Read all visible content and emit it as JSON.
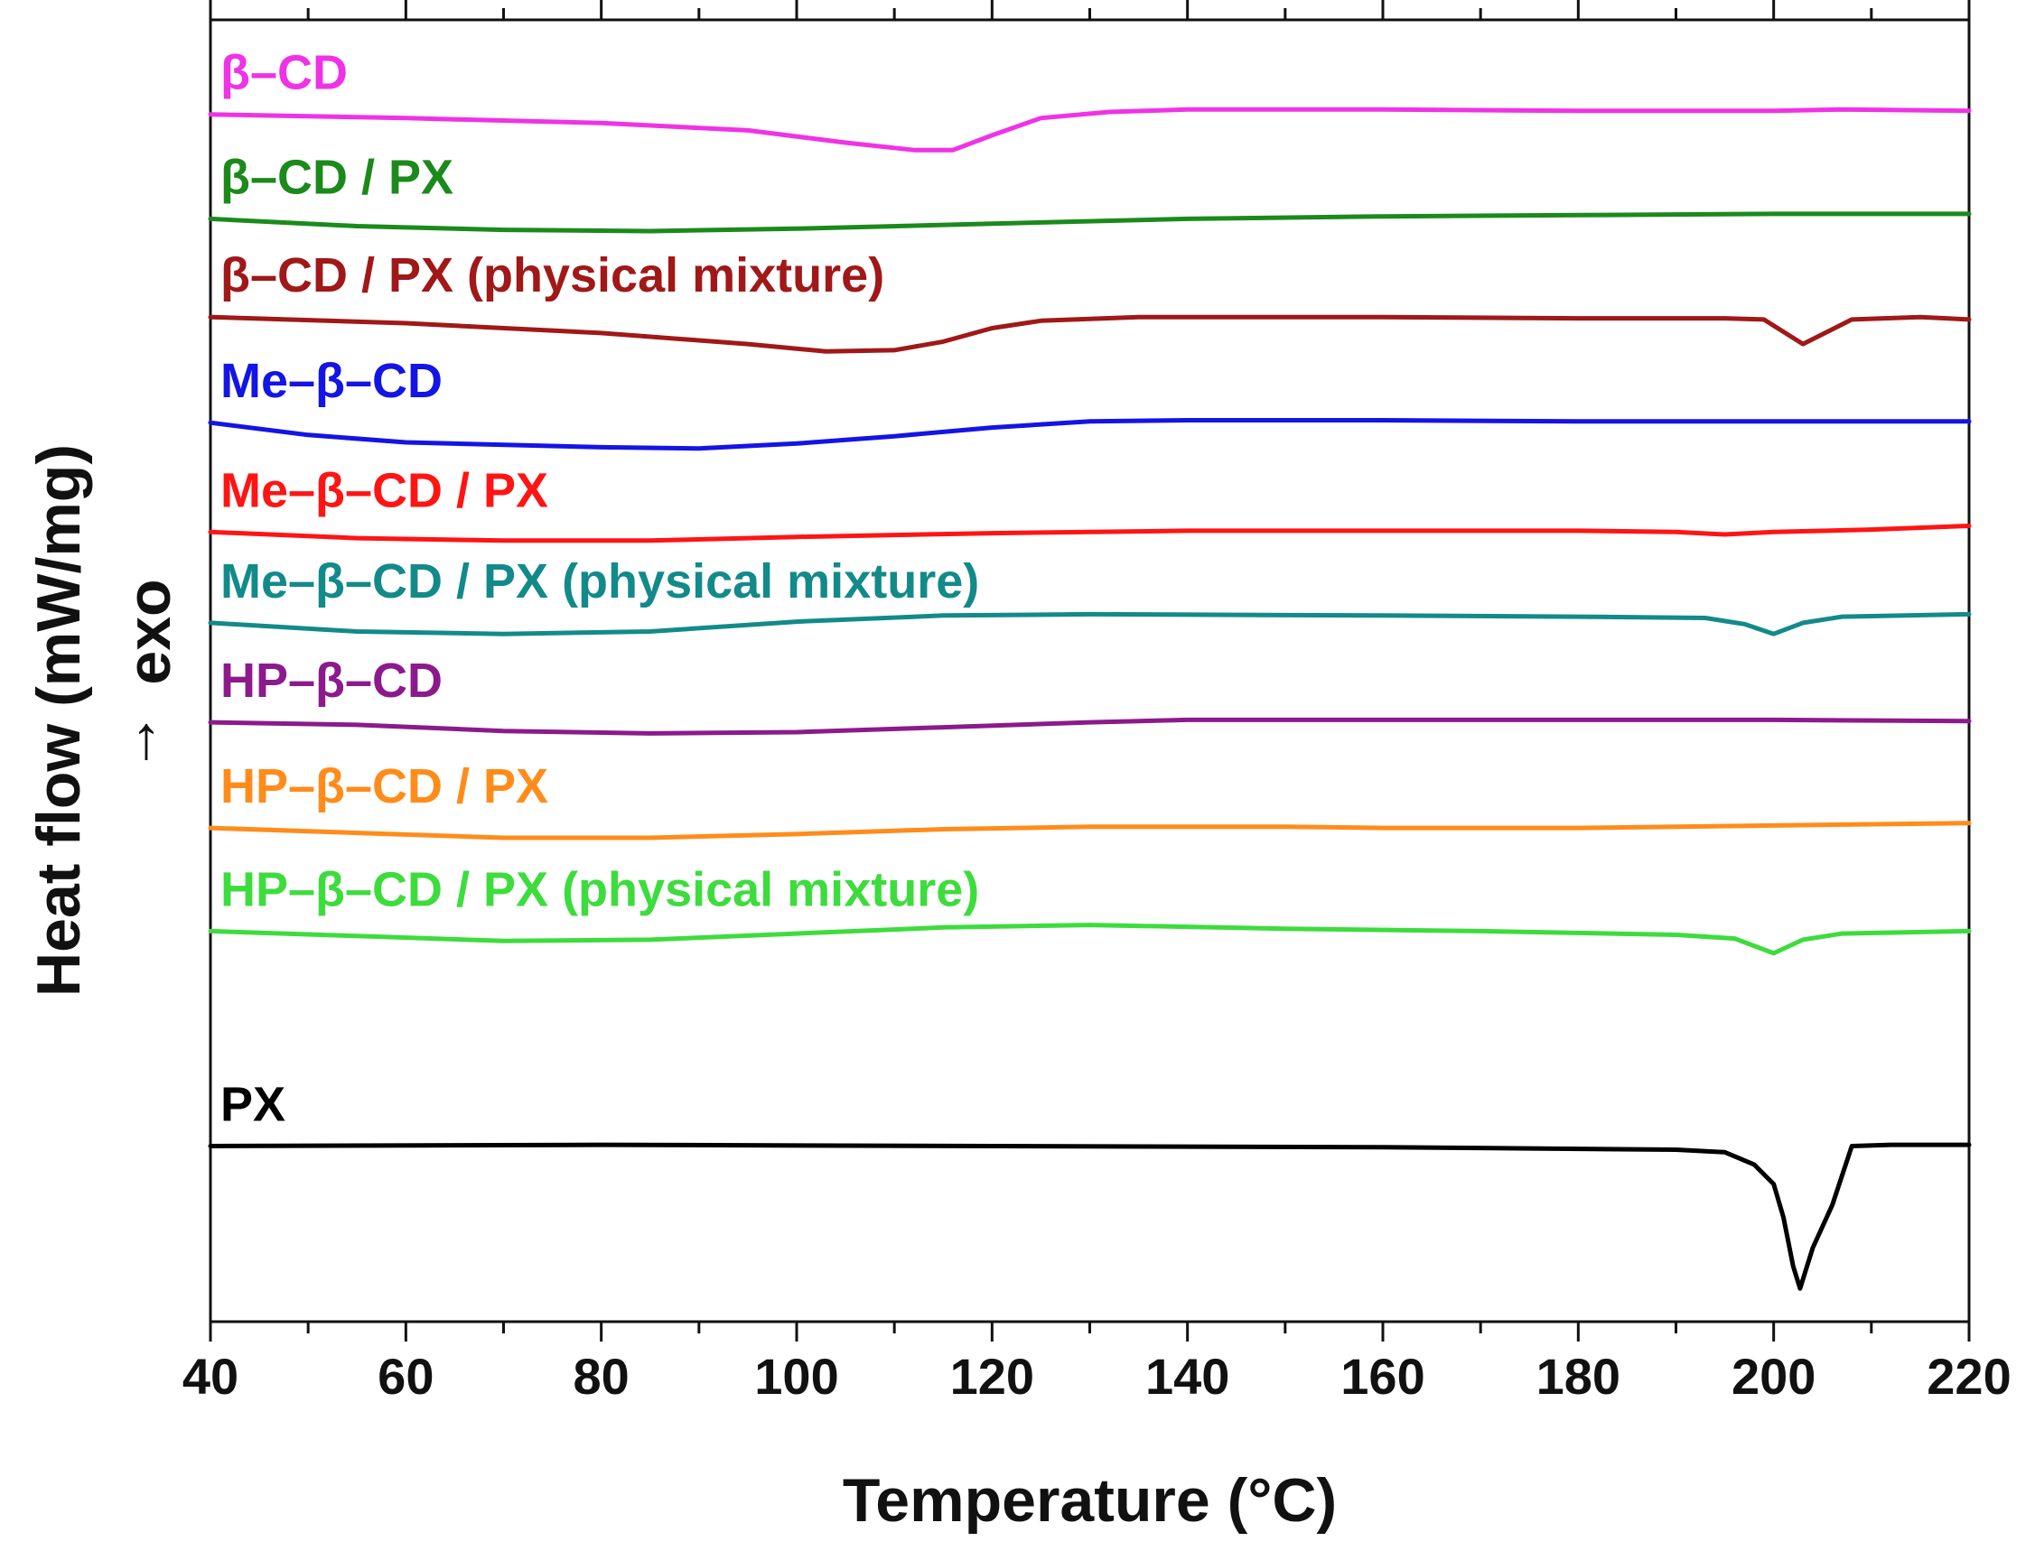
{
  "chart_data": {
    "type": "line",
    "title": "",
    "xlabel": "Temperature (°C)",
    "ylabel": "Heat flow (mW/mg)",
    "ylabel_marker": "exo",
    "ylabel_arrow": "↑",
    "xlim": [
      40,
      220
    ],
    "x_ticks": [
      "40",
      "60",
      "80",
      "100",
      "120",
      "140",
      "160",
      "180",
      "200",
      "220"
    ],
    "ylim": [
      0,
      10.6
    ],
    "y_ticks_labeled": false,
    "grid": false,
    "legend": "inline labels above each curve",
    "series": [
      {
        "name": "β–CD",
        "color": "#f032e6",
        "points": [
          [
            40,
            9.83
          ],
          [
            60,
            9.8
          ],
          [
            80,
            9.76
          ],
          [
            95,
            9.7
          ],
          [
            105,
            9.6
          ],
          [
            112,
            9.54
          ],
          [
            116,
            9.54
          ],
          [
            120,
            9.66
          ],
          [
            125,
            9.8
          ],
          [
            132,
            9.85
          ],
          [
            140,
            9.87
          ],
          [
            160,
            9.87
          ],
          [
            180,
            9.86
          ],
          [
            200,
            9.86
          ],
          [
            207,
            9.87
          ],
          [
            220,
            9.86
          ]
        ]
      },
      {
        "name": "β–CD / PX",
        "color": "#1b8a1b",
        "points": [
          [
            40,
            8.98
          ],
          [
            55,
            8.92
          ],
          [
            70,
            8.89
          ],
          [
            85,
            8.88
          ],
          [
            100,
            8.9
          ],
          [
            120,
            8.94
          ],
          [
            140,
            8.98
          ],
          [
            160,
            9.0
          ],
          [
            180,
            9.01
          ],
          [
            200,
            9.02
          ],
          [
            220,
            9.02
          ]
        ]
      },
      {
        "name": "β–CD / PX (physical mixture)",
        "color": "#a01818",
        "points": [
          [
            40,
            8.18
          ],
          [
            60,
            8.13
          ],
          [
            80,
            8.05
          ],
          [
            95,
            7.96
          ],
          [
            103,
            7.9
          ],
          [
            110,
            7.91
          ],
          [
            115,
            7.98
          ],
          [
            120,
            8.09
          ],
          [
            125,
            8.15
          ],
          [
            135,
            8.18
          ],
          [
            160,
            8.18
          ],
          [
            180,
            8.17
          ],
          [
            195,
            8.17
          ],
          [
            199,
            8.16
          ],
          [
            203,
            7.96
          ],
          [
            208,
            8.16
          ],
          [
            215,
            8.18
          ],
          [
            220,
            8.16
          ]
        ]
      },
      {
        "name": "Me–β–CD",
        "color": "#1414e6",
        "points": [
          [
            40,
            7.32
          ],
          [
            50,
            7.22
          ],
          [
            60,
            7.16
          ],
          [
            80,
            7.12
          ],
          [
            90,
            7.11
          ],
          [
            100,
            7.15
          ],
          [
            110,
            7.21
          ],
          [
            120,
            7.28
          ],
          [
            130,
            7.33
          ],
          [
            140,
            7.34
          ],
          [
            160,
            7.34
          ],
          [
            180,
            7.33
          ],
          [
            200,
            7.33
          ],
          [
            220,
            7.33
          ]
        ]
      },
      {
        "name": "Me–β–CD / PX",
        "color": "#ff1414",
        "points": [
          [
            40,
            6.43
          ],
          [
            55,
            6.38
          ],
          [
            70,
            6.36
          ],
          [
            85,
            6.36
          ],
          [
            100,
            6.39
          ],
          [
            120,
            6.42
          ],
          [
            140,
            6.44
          ],
          [
            160,
            6.44
          ],
          [
            180,
            6.44
          ],
          [
            190,
            6.43
          ],
          [
            195,
            6.41
          ],
          [
            200,
            6.43
          ],
          [
            210,
            6.45
          ],
          [
            220,
            6.48
          ]
        ]
      },
      {
        "name": "Me–β–CD / PX (physical mixture)",
        "color": "#138a8a",
        "points": [
          [
            40,
            5.69
          ],
          [
            55,
            5.62
          ],
          [
            70,
            5.6
          ],
          [
            85,
            5.62
          ],
          [
            100,
            5.7
          ],
          [
            115,
            5.75
          ],
          [
            130,
            5.76
          ],
          [
            160,
            5.75
          ],
          [
            180,
            5.74
          ],
          [
            193,
            5.73
          ],
          [
            197,
            5.68
          ],
          [
            200,
            5.6
          ],
          [
            203,
            5.69
          ],
          [
            207,
            5.74
          ],
          [
            220,
            5.76
          ]
        ]
      },
      {
        "name": "HP–β–CD",
        "color": "#8c1a8c",
        "points": [
          [
            40,
            4.88
          ],
          [
            55,
            4.86
          ],
          [
            70,
            4.81
          ],
          [
            85,
            4.79
          ],
          [
            100,
            4.8
          ],
          [
            115,
            4.84
          ],
          [
            130,
            4.88
          ],
          [
            140,
            4.9
          ],
          [
            160,
            4.9
          ],
          [
            180,
            4.9
          ],
          [
            200,
            4.9
          ],
          [
            220,
            4.89
          ]
        ]
      },
      {
        "name": "HP–β–CD / PX",
        "color": "#ff8c1a",
        "points": [
          [
            40,
            4.02
          ],
          [
            55,
            3.98
          ],
          [
            70,
            3.94
          ],
          [
            85,
            3.94
          ],
          [
            100,
            3.97
          ],
          [
            115,
            4.01
          ],
          [
            130,
            4.03
          ],
          [
            150,
            4.03
          ],
          [
            160,
            4.02
          ],
          [
            180,
            4.02
          ],
          [
            200,
            4.04
          ],
          [
            220,
            4.06
          ]
        ]
      },
      {
        "name": "HP–β–CD / PX (physical mixture)",
        "color": "#3ddc3d",
        "points": [
          [
            40,
            3.18
          ],
          [
            55,
            3.14
          ],
          [
            70,
            3.1
          ],
          [
            85,
            3.11
          ],
          [
            100,
            3.16
          ],
          [
            115,
            3.21
          ],
          [
            130,
            3.23
          ],
          [
            150,
            3.2
          ],
          [
            170,
            3.18
          ],
          [
            190,
            3.15
          ],
          [
            196,
            3.12
          ],
          [
            200,
            3.0
          ],
          [
            203,
            3.11
          ],
          [
            207,
            3.16
          ],
          [
            220,
            3.18
          ]
        ]
      },
      {
        "name": "PX",
        "color": "#000000",
        "points": [
          [
            40,
            1.43
          ],
          [
            80,
            1.44
          ],
          [
            120,
            1.43
          ],
          [
            160,
            1.42
          ],
          [
            190,
            1.4
          ],
          [
            195,
            1.38
          ],
          [
            198,
            1.28
          ],
          [
            200,
            1.12
          ],
          [
            201,
            0.85
          ],
          [
            202,
            0.45
          ],
          [
            202.7,
            0.27
          ],
          [
            204,
            0.6
          ],
          [
            206,
            0.95
          ],
          [
            208,
            1.43
          ],
          [
            212,
            1.44
          ],
          [
            220,
            1.44
          ]
        ]
      }
    ]
  }
}
